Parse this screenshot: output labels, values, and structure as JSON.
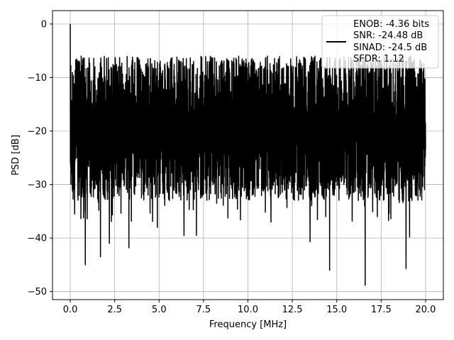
{
  "chart_data": {
    "type": "line",
    "title": "",
    "xlabel": "Frequency [MHz]",
    "ylabel": "PSD [dB]",
    "xlim": [
      -1.0,
      21.0
    ],
    "ylim": [
      -51.5,
      2.5
    ],
    "xticks": [
      0.0,
      2.5,
      5.0,
      7.5,
      10.0,
      12.5,
      15.0,
      17.5,
      20.0
    ],
    "xtick_labels": [
      "0.0",
      "2.5",
      "5.0",
      "7.5",
      "10.0",
      "12.5",
      "15.0",
      "17.5",
      "20.0"
    ],
    "yticks": [
      0,
      -10,
      -20,
      -30,
      -40,
      -50
    ],
    "ytick_labels": [
      "0",
      "−10",
      "−20",
      "−30",
      "−40",
      "−50"
    ],
    "grid": true,
    "legend_position": "top-right",
    "legend_lines": [
      "ENOB: -4.36 bits",
      "SNR: -24.48 dB",
      "SINAD: -24.5 dB",
      "SFDR: 1.12"
    ],
    "series": [
      {
        "color": "#000000",
        "x_range": [
          0.0,
          20.0
        ],
        "y_range": [
          -48.8,
          0.0
        ],
        "typical_band": [
          -27,
          -10
        ],
        "peaks": [
          {
            "x": 0.0,
            "y": 0.0
          },
          {
            "x": 0.05,
            "y": -19.0
          },
          {
            "x": 0.25,
            "y": -35.5
          },
          {
            "x": 0.85,
            "y": -45.0
          },
          {
            "x": 1.7,
            "y": -43.5
          },
          {
            "x": 2.2,
            "y": -41.0
          },
          {
            "x": 3.3,
            "y": -41.8
          },
          {
            "x": 4.9,
            "y": -38.0
          },
          {
            "x": 6.4,
            "y": -39.5
          },
          {
            "x": 7.1,
            "y": -39.5
          },
          {
            "x": 11.3,
            "y": -37.0
          },
          {
            "x": 13.5,
            "y": -40.7
          },
          {
            "x": 14.6,
            "y": -46.0
          },
          {
            "x": 16.6,
            "y": -48.8
          },
          {
            "x": 18.9,
            "y": -45.7
          },
          {
            "x": 19.1,
            "y": -39.8
          }
        ]
      }
    ]
  }
}
